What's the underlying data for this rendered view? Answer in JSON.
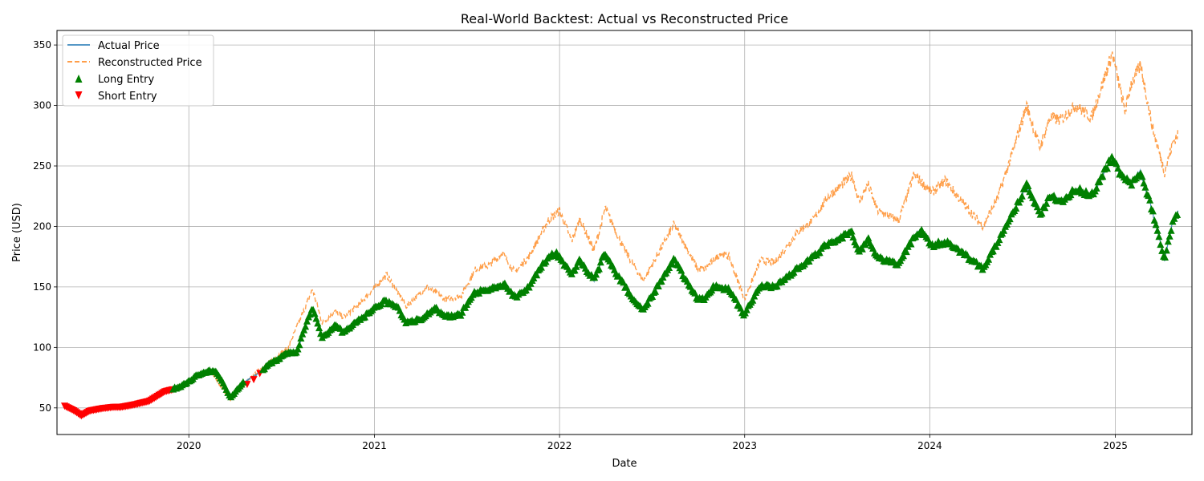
{
  "chart_data": {
    "type": "line",
    "title": "Real-World Backtest: Actual vs Reconstructed Price",
    "xlabel": "Date",
    "ylabel": "Price (USD)",
    "xlim": [
      "2019-04-16",
      "2025-06-01"
    ],
    "ylim": [
      28,
      362
    ],
    "x_ticks": [
      "2020-01-01",
      "2021-01-01",
      "2022-01-01",
      "2023-01-01",
      "2024-01-01",
      "2025-01-01"
    ],
    "x_tick_labels": [
      "2020",
      "2021",
      "2022",
      "2023",
      "2024",
      "2025"
    ],
    "y_ticks": [
      50,
      100,
      150,
      200,
      250,
      300,
      350
    ],
    "y_tick_labels": [
      "50",
      "100",
      "150",
      "200",
      "250",
      "300",
      "350"
    ],
    "grid": true,
    "legend_position": "upper-left",
    "colors": {
      "actual": "#1f77b4",
      "reconstructed": "#ff7f0e",
      "long": "#008000",
      "short": "#ff0000",
      "grid": "#b0b0b0"
    },
    "series": [
      {
        "name": "Actual Price",
        "style": "solid",
        "points": [
          [
            "2019-05-01",
            52
          ],
          [
            "2019-05-20",
            48
          ],
          [
            "2019-06-03",
            44
          ],
          [
            "2019-06-20",
            48
          ],
          [
            "2019-07-15",
            50
          ],
          [
            "2019-08-05",
            51
          ],
          [
            "2019-08-20",
            51
          ],
          [
            "2019-09-15",
            53
          ],
          [
            "2019-10-15",
            56
          ],
          [
            "2019-11-15",
            64
          ],
          [
            "2019-12-15",
            67
          ],
          [
            "2020-01-15",
            76
          ],
          [
            "2020-02-10",
            80
          ],
          [
            "2020-02-25",
            79
          ],
          [
            "2020-03-10",
            70
          ],
          [
            "2020-03-23",
            58
          ],
          [
            "2020-04-15",
            70
          ],
          [
            "2020-05-15",
            78
          ],
          [
            "2020-06-15",
            88
          ],
          [
            "2020-07-15",
            95
          ],
          [
            "2020-08-01",
            95
          ],
          [
            "2020-08-15",
            115
          ],
          [
            "2020-09-01",
            132
          ],
          [
            "2020-09-20",
            108
          ],
          [
            "2020-10-15",
            118
          ],
          [
            "2020-11-01",
            112
          ],
          [
            "2020-12-01",
            122
          ],
          [
            "2021-01-20",
            138
          ],
          [
            "2021-02-15",
            133
          ],
          [
            "2021-03-05",
            120
          ],
          [
            "2021-04-01",
            123
          ],
          [
            "2021-05-01",
            132
          ],
          [
            "2021-05-20",
            125
          ],
          [
            "2021-06-20",
            127
          ],
          [
            "2021-07-15",
            145
          ],
          [
            "2021-08-15",
            147
          ],
          [
            "2021-09-15",
            152
          ],
          [
            "2021-10-05",
            141
          ],
          [
            "2021-11-01",
            150
          ],
          [
            "2021-12-10",
            175
          ],
          [
            "2021-12-25",
            178
          ],
          [
            "2022-01-25",
            160
          ],
          [
            "2022-02-10",
            172
          ],
          [
            "2022-03-10",
            155
          ],
          [
            "2022-03-30",
            177
          ],
          [
            "2022-05-10",
            150
          ],
          [
            "2022-05-25",
            140
          ],
          [
            "2022-06-15",
            131
          ],
          [
            "2022-08-15",
            172
          ],
          [
            "2022-09-01",
            160
          ],
          [
            "2022-09-30",
            140
          ],
          [
            "2022-10-15",
            140
          ],
          [
            "2022-11-01",
            150
          ],
          [
            "2022-12-01",
            148
          ],
          [
            "2022-12-30",
            127
          ],
          [
            "2023-02-01",
            150
          ],
          [
            "2023-03-01",
            150
          ],
          [
            "2023-04-15",
            165
          ],
          [
            "2023-05-15",
            174
          ],
          [
            "2023-06-15",
            186
          ],
          [
            "2023-07-30",
            195
          ],
          [
            "2023-08-15",
            178
          ],
          [
            "2023-09-01",
            189
          ],
          [
            "2023-09-20",
            174
          ],
          [
            "2023-10-30",
            168
          ],
          [
            "2023-11-30",
            190
          ],
          [
            "2023-12-15",
            197
          ],
          [
            "2024-01-05",
            184
          ],
          [
            "2024-02-01",
            187
          ],
          [
            "2024-03-01",
            179
          ],
          [
            "2024-04-15",
            165
          ],
          [
            "2024-05-15",
            187
          ],
          [
            "2024-06-15",
            212
          ],
          [
            "2024-07-10",
            234
          ],
          [
            "2024-08-05",
            209
          ],
          [
            "2024-08-25",
            225
          ],
          [
            "2024-09-15",
            220
          ],
          [
            "2024-10-15",
            231
          ],
          [
            "2024-11-15",
            225
          ],
          [
            "2024-12-26",
            258
          ],
          [
            "2025-01-10",
            242
          ],
          [
            "2025-02-01",
            235
          ],
          [
            "2025-02-20",
            245
          ],
          [
            "2025-03-10",
            220
          ],
          [
            "2025-04-08",
            173
          ],
          [
            "2025-04-25",
            205
          ],
          [
            "2025-05-05",
            212
          ]
        ]
      },
      {
        "name": "Reconstructed Price",
        "style": "dashed",
        "points": [
          [
            "2019-05-01",
            52
          ],
          [
            "2019-06-03",
            44
          ],
          [
            "2019-07-15",
            50
          ],
          [
            "2019-08-20",
            51
          ],
          [
            "2019-10-15",
            57
          ],
          [
            "2019-12-15",
            68
          ],
          [
            "2020-02-10",
            81
          ],
          [
            "2020-03-23",
            57
          ],
          [
            "2020-05-15",
            80
          ],
          [
            "2020-07-15",
            100
          ],
          [
            "2020-09-01",
            148
          ],
          [
            "2020-09-20",
            120
          ],
          [
            "2020-10-15",
            130
          ],
          [
            "2020-11-01",
            125
          ],
          [
            "2020-12-01",
            135
          ],
          [
            "2021-01-25",
            160
          ],
          [
            "2021-03-05",
            134
          ],
          [
            "2021-04-15",
            150
          ],
          [
            "2021-05-20",
            140
          ],
          [
            "2021-06-20",
            142
          ],
          [
            "2021-07-20",
            165
          ],
          [
            "2021-08-15",
            168
          ],
          [
            "2021-09-10",
            178
          ],
          [
            "2021-10-05",
            162
          ],
          [
            "2021-11-01",
            175
          ],
          [
            "2021-12-10",
            205
          ],
          [
            "2022-01-01",
            213
          ],
          [
            "2022-01-25",
            188
          ],
          [
            "2022-02-10",
            206
          ],
          [
            "2022-03-10",
            180
          ],
          [
            "2022-04-01",
            215
          ],
          [
            "2022-05-10",
            180
          ],
          [
            "2022-06-15",
            155
          ],
          [
            "2022-08-15",
            202
          ],
          [
            "2022-09-01",
            188
          ],
          [
            "2022-09-30",
            165
          ],
          [
            "2022-10-15",
            165
          ],
          [
            "2022-11-15",
            178
          ],
          [
            "2022-12-01",
            175
          ],
          [
            "2023-01-01",
            140
          ],
          [
            "2023-02-01",
            172
          ],
          [
            "2023-03-01",
            170
          ],
          [
            "2023-04-15",
            195
          ],
          [
            "2023-05-15",
            205
          ],
          [
            "2023-06-15",
            225
          ],
          [
            "2023-08-01",
            242
          ],
          [
            "2023-08-15",
            220
          ],
          [
            "2023-09-01",
            235
          ],
          [
            "2023-09-20",
            213
          ],
          [
            "2023-11-01",
            205
          ],
          [
            "2023-12-01",
            243
          ],
          [
            "2024-01-05",
            228
          ],
          [
            "2024-02-01",
            238
          ],
          [
            "2024-03-01",
            222
          ],
          [
            "2024-04-15",
            200
          ],
          [
            "2024-05-15",
            225
          ],
          [
            "2024-06-15",
            265
          ],
          [
            "2024-07-10",
            300
          ],
          [
            "2024-08-05",
            265
          ],
          [
            "2024-08-25",
            290
          ],
          [
            "2024-09-15",
            288
          ],
          [
            "2024-10-15",
            300
          ],
          [
            "2024-11-15",
            290
          ],
          [
            "2024-12-26",
            343
          ],
          [
            "2025-01-20",
            295
          ],
          [
            "2025-02-01",
            318
          ],
          [
            "2025-02-20",
            333
          ],
          [
            "2025-03-15",
            282
          ],
          [
            "2025-04-08",
            245
          ],
          [
            "2025-04-25",
            270
          ],
          [
            "2025-05-05",
            277
          ]
        ]
      }
    ],
    "markers": [
      {
        "name": "Long Entry",
        "shape": "triangle-up",
        "start": "2019-12-01",
        "end": "2025-05-05",
        "every_days": 3,
        "skip": [
          [
            "2020-04-20",
            "2020-05-25"
          ]
        ]
      },
      {
        "name": "Short Entry",
        "shape": "triangle-down",
        "start": "2019-05-01",
        "end": "2019-12-01",
        "every_days": 3,
        "extra": [
          [
            "2020-04-25",
            70
          ],
          [
            "2020-05-08",
            74
          ],
          [
            "2020-05-20",
            79
          ]
        ]
      }
    ]
  }
}
